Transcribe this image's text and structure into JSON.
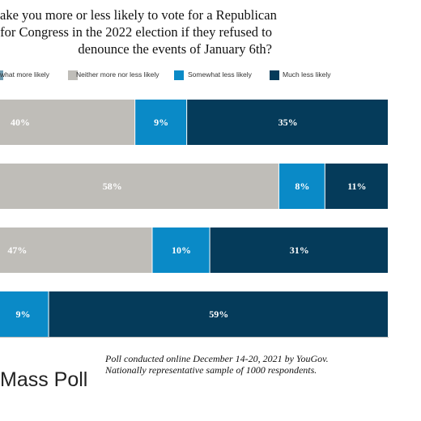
{
  "title_lines": [
    "ake you more or less likely to vote for a Republican",
    "for Congress in the 2022 election if they refused to",
    "denounce the events of January 6th?"
  ],
  "legend": [
    {
      "label": "what more likely",
      "color": "#6f9bb0"
    },
    {
      "label": "Neither more nor less likely",
      "color": "#bfbdb8"
    },
    {
      "label": "Somewhat less likely",
      "color": "#0a8ac7"
    },
    {
      "label": "Much less likely",
      "color": "#053b5a"
    }
  ],
  "chart_data": {
    "type": "bar",
    "orientation": "horizontal",
    "stacked": true,
    "categories": [
      "",
      "",
      "",
      ""
    ],
    "series": [
      {
        "name": "Neither more nor less likely",
        "color": "#bfbdb8",
        "values": [
          40,
          58,
          47,
          null
        ]
      },
      {
        "name": "Somewhat less likely",
        "color": "#0a8ac7",
        "values": [
          9,
          8,
          10,
          9
        ]
      },
      {
        "name": "Much less likely",
        "color": "#053b5a",
        "values": [
          35,
          11,
          31,
          59
        ]
      }
    ],
    "data_labels": [
      [
        "40%",
        "9%",
        "35%"
      ],
      [
        "58%",
        "8%",
        "11%"
      ],
      [
        "47%",
        "10%",
        "31%"
      ],
      [
        "",
        "9%",
        "59%"
      ]
    ],
    "xlim": [
      0,
      100
    ],
    "legend_position": "top"
  },
  "brand": "Mass Poll",
  "note_lines": [
    "Poll conducted online December 14-20, 2021 by YouGov.",
    "Nationally representative sample of 1000 respondents."
  ]
}
